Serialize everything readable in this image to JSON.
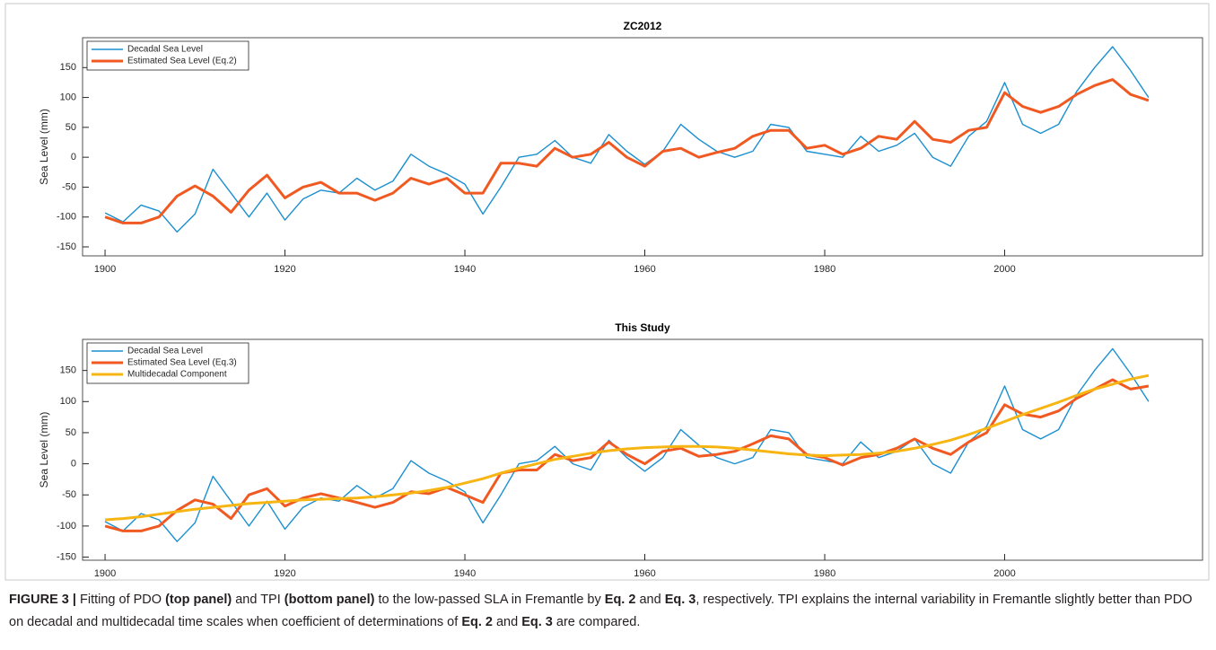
{
  "chart_data": [
    {
      "type": "line",
      "title": "ZC2012",
      "ylabel": "Sea Level (mm)",
      "legend": "upper left",
      "grid": false,
      "xlim": [
        1897.5,
        2022
      ],
      "xticks": [
        1900,
        1920,
        1940,
        1960,
        1980,
        2000
      ],
      "ylim": [
        -165,
        200
      ],
      "yticks": [
        -150,
        -100,
        -50,
        0,
        50,
        100,
        150
      ],
      "x": [
        1900,
        1902,
        1904,
        1906,
        1908,
        1910,
        1912,
        1914,
        1916,
        1918,
        1920,
        1922,
        1924,
        1926,
        1928,
        1930,
        1932,
        1934,
        1936,
        1938,
        1940,
        1942,
        1944,
        1946,
        1948,
        1950,
        1952,
        1954,
        1956,
        1958,
        1960,
        1962,
        1964,
        1966,
        1968,
        1970,
        1972,
        1974,
        1976,
        1978,
        1980,
        1982,
        1984,
        1986,
        1988,
        1990,
        1992,
        1994,
        1996,
        1998,
        2000,
        2002,
        2004,
        2006,
        2008,
        2010,
        2012,
        2014,
        2016
      ],
      "series": [
        {
          "name": "Decadal Sea Level",
          "color": "#1b8fcf",
          "width": 1.4,
          "values": [
            -93,
            -108,
            -80,
            -90,
            -125,
            -95,
            -20,
            -60,
            -100,
            -60,
            -105,
            -70,
            -55,
            -60,
            -35,
            -55,
            -40,
            5,
            -15,
            -28,
            -45,
            -95,
            -50,
            0,
            5,
            28,
            0,
            -10,
            38,
            10,
            -12,
            10,
            55,
            30,
            10,
            0,
            10,
            55,
            50,
            10,
            5,
            0,
            35,
            10,
            20,
            40,
            0,
            -15,
            35,
            60,
            125,
            55,
            40,
            55,
            110,
            150,
            185,
            145,
            100
          ]
        },
        {
          "name": "Estimated Sea Level (Eq.2)",
          "color": "#f05a22",
          "width": 3,
          "values": [
            -100,
            -110,
            -110,
            -100,
            -65,
            -48,
            -65,
            -92,
            -55,
            -30,
            -68,
            -50,
            -42,
            -60,
            -60,
            -72,
            -60,
            -35,
            -45,
            -35,
            -60,
            -60,
            -10,
            -10,
            -15,
            15,
            0,
            5,
            25,
            0,
            -15,
            10,
            15,
            0,
            8,
            15,
            35,
            45,
            45,
            15,
            20,
            5,
            15,
            35,
            30,
            60,
            30,
            25,
            45,
            50,
            108,
            85,
            75,
            85,
            105,
            120,
            130,
            105,
            95
          ]
        }
      ]
    },
    {
      "type": "line",
      "title": "This Study",
      "ylabel": "Sea Level (mm)",
      "legend": "upper left",
      "grid": false,
      "xlim": [
        1897.5,
        2022
      ],
      "xticks": [
        1900,
        1920,
        1940,
        1960,
        1980,
        2000
      ],
      "ylim": [
        -155,
        200
      ],
      "yticks": [
        -150,
        -100,
        -50,
        0,
        50,
        100,
        150
      ],
      "x": [
        1900,
        1902,
        1904,
        1906,
        1908,
        1910,
        1912,
        1914,
        1916,
        1918,
        1920,
        1922,
        1924,
        1926,
        1928,
        1930,
        1932,
        1934,
        1936,
        1938,
        1940,
        1942,
        1944,
        1946,
        1948,
        1950,
        1952,
        1954,
        1956,
        1958,
        1960,
        1962,
        1964,
        1966,
        1968,
        1970,
        1972,
        1974,
        1976,
        1978,
        1980,
        1982,
        1984,
        1986,
        1988,
        1990,
        1992,
        1994,
        1996,
        1998,
        2000,
        2002,
        2004,
        2006,
        2008,
        2010,
        2012,
        2014,
        2016
      ],
      "series": [
        {
          "name": "Decadal Sea Level",
          "color": "#1b8fcf",
          "width": 1.4,
          "values": [
            -93,
            -108,
            -80,
            -90,
            -125,
            -95,
            -20,
            -60,
            -100,
            -60,
            -105,
            -70,
            -55,
            -60,
            -35,
            -55,
            -40,
            5,
            -15,
            -28,
            -45,
            -95,
            -50,
            0,
            5,
            28,
            0,
            -10,
            38,
            10,
            -12,
            10,
            55,
            30,
            10,
            0,
            10,
            55,
            50,
            10,
            5,
            0,
            35,
            10,
            20,
            40,
            0,
            -15,
            35,
            60,
            125,
            55,
            40,
            55,
            110,
            150,
            185,
            145,
            100
          ]
        },
        {
          "name": "Estimated Sea Level (Eq.3)",
          "color": "#f05a22",
          "width": 3,
          "values": [
            -100,
            -108,
            -108,
            -100,
            -75,
            -58,
            -65,
            -88,
            -50,
            -40,
            -68,
            -55,
            -48,
            -55,
            -62,
            -70,
            -62,
            -45,
            -48,
            -38,
            -50,
            -62,
            -15,
            -10,
            -10,
            15,
            5,
            10,
            35,
            15,
            0,
            20,
            25,
            12,
            15,
            20,
            32,
            45,
            40,
            15,
            10,
            -2,
            10,
            15,
            25,
            40,
            25,
            15,
            35,
            50,
            95,
            80,
            75,
            85,
            105,
            120,
            135,
            120,
            125
          ]
        },
        {
          "name": "Multidecadal Component",
          "color": "#f7b514",
          "width": 3,
          "values": [
            -90,
            -88,
            -85,
            -81,
            -77,
            -73,
            -70,
            -67,
            -64,
            -62,
            -60,
            -58,
            -57,
            -56,
            -55,
            -53,
            -50,
            -47,
            -43,
            -38,
            -31,
            -24,
            -15,
            -7,
            0,
            7,
            12,
            17,
            21,
            24,
            26,
            27,
            28,
            28,
            27,
            25,
            22,
            19,
            16,
            14,
            13,
            14,
            15,
            17,
            20,
            25,
            31,
            38,
            47,
            57,
            68,
            79,
            89,
            99,
            110,
            120,
            128,
            136,
            142
          ]
        }
      ]
    }
  ],
  "caption": {
    "runs": [
      {
        "text": "FIGURE 3 |",
        "bold": true
      },
      {
        "text": " Fitting of PDO ",
        "bold": false
      },
      {
        "text": "(top panel)",
        "bold": true
      },
      {
        "text": " and TPI ",
        "bold": false
      },
      {
        "text": "(bottom panel)",
        "bold": true
      },
      {
        "text": " to the low-passed SLA in Fremantle by ",
        "bold": false
      },
      {
        "text": "Eq. 2",
        "bold": true
      },
      {
        "text": " and ",
        "bold": false
      },
      {
        "text": "Eq. 3",
        "bold": true
      },
      {
        "text": ", respectively. TPI explains the internal variability in Fremantle slightly better than PDO on decadal and multidecadal time scales when coefficient of determinations of ",
        "bold": false
      },
      {
        "text": "Eq. 2",
        "bold": true
      },
      {
        "text": " and ",
        "bold": false
      },
      {
        "text": "Eq. 3",
        "bold": true
      },
      {
        "text": " are compared.",
        "bold": false
      }
    ]
  }
}
